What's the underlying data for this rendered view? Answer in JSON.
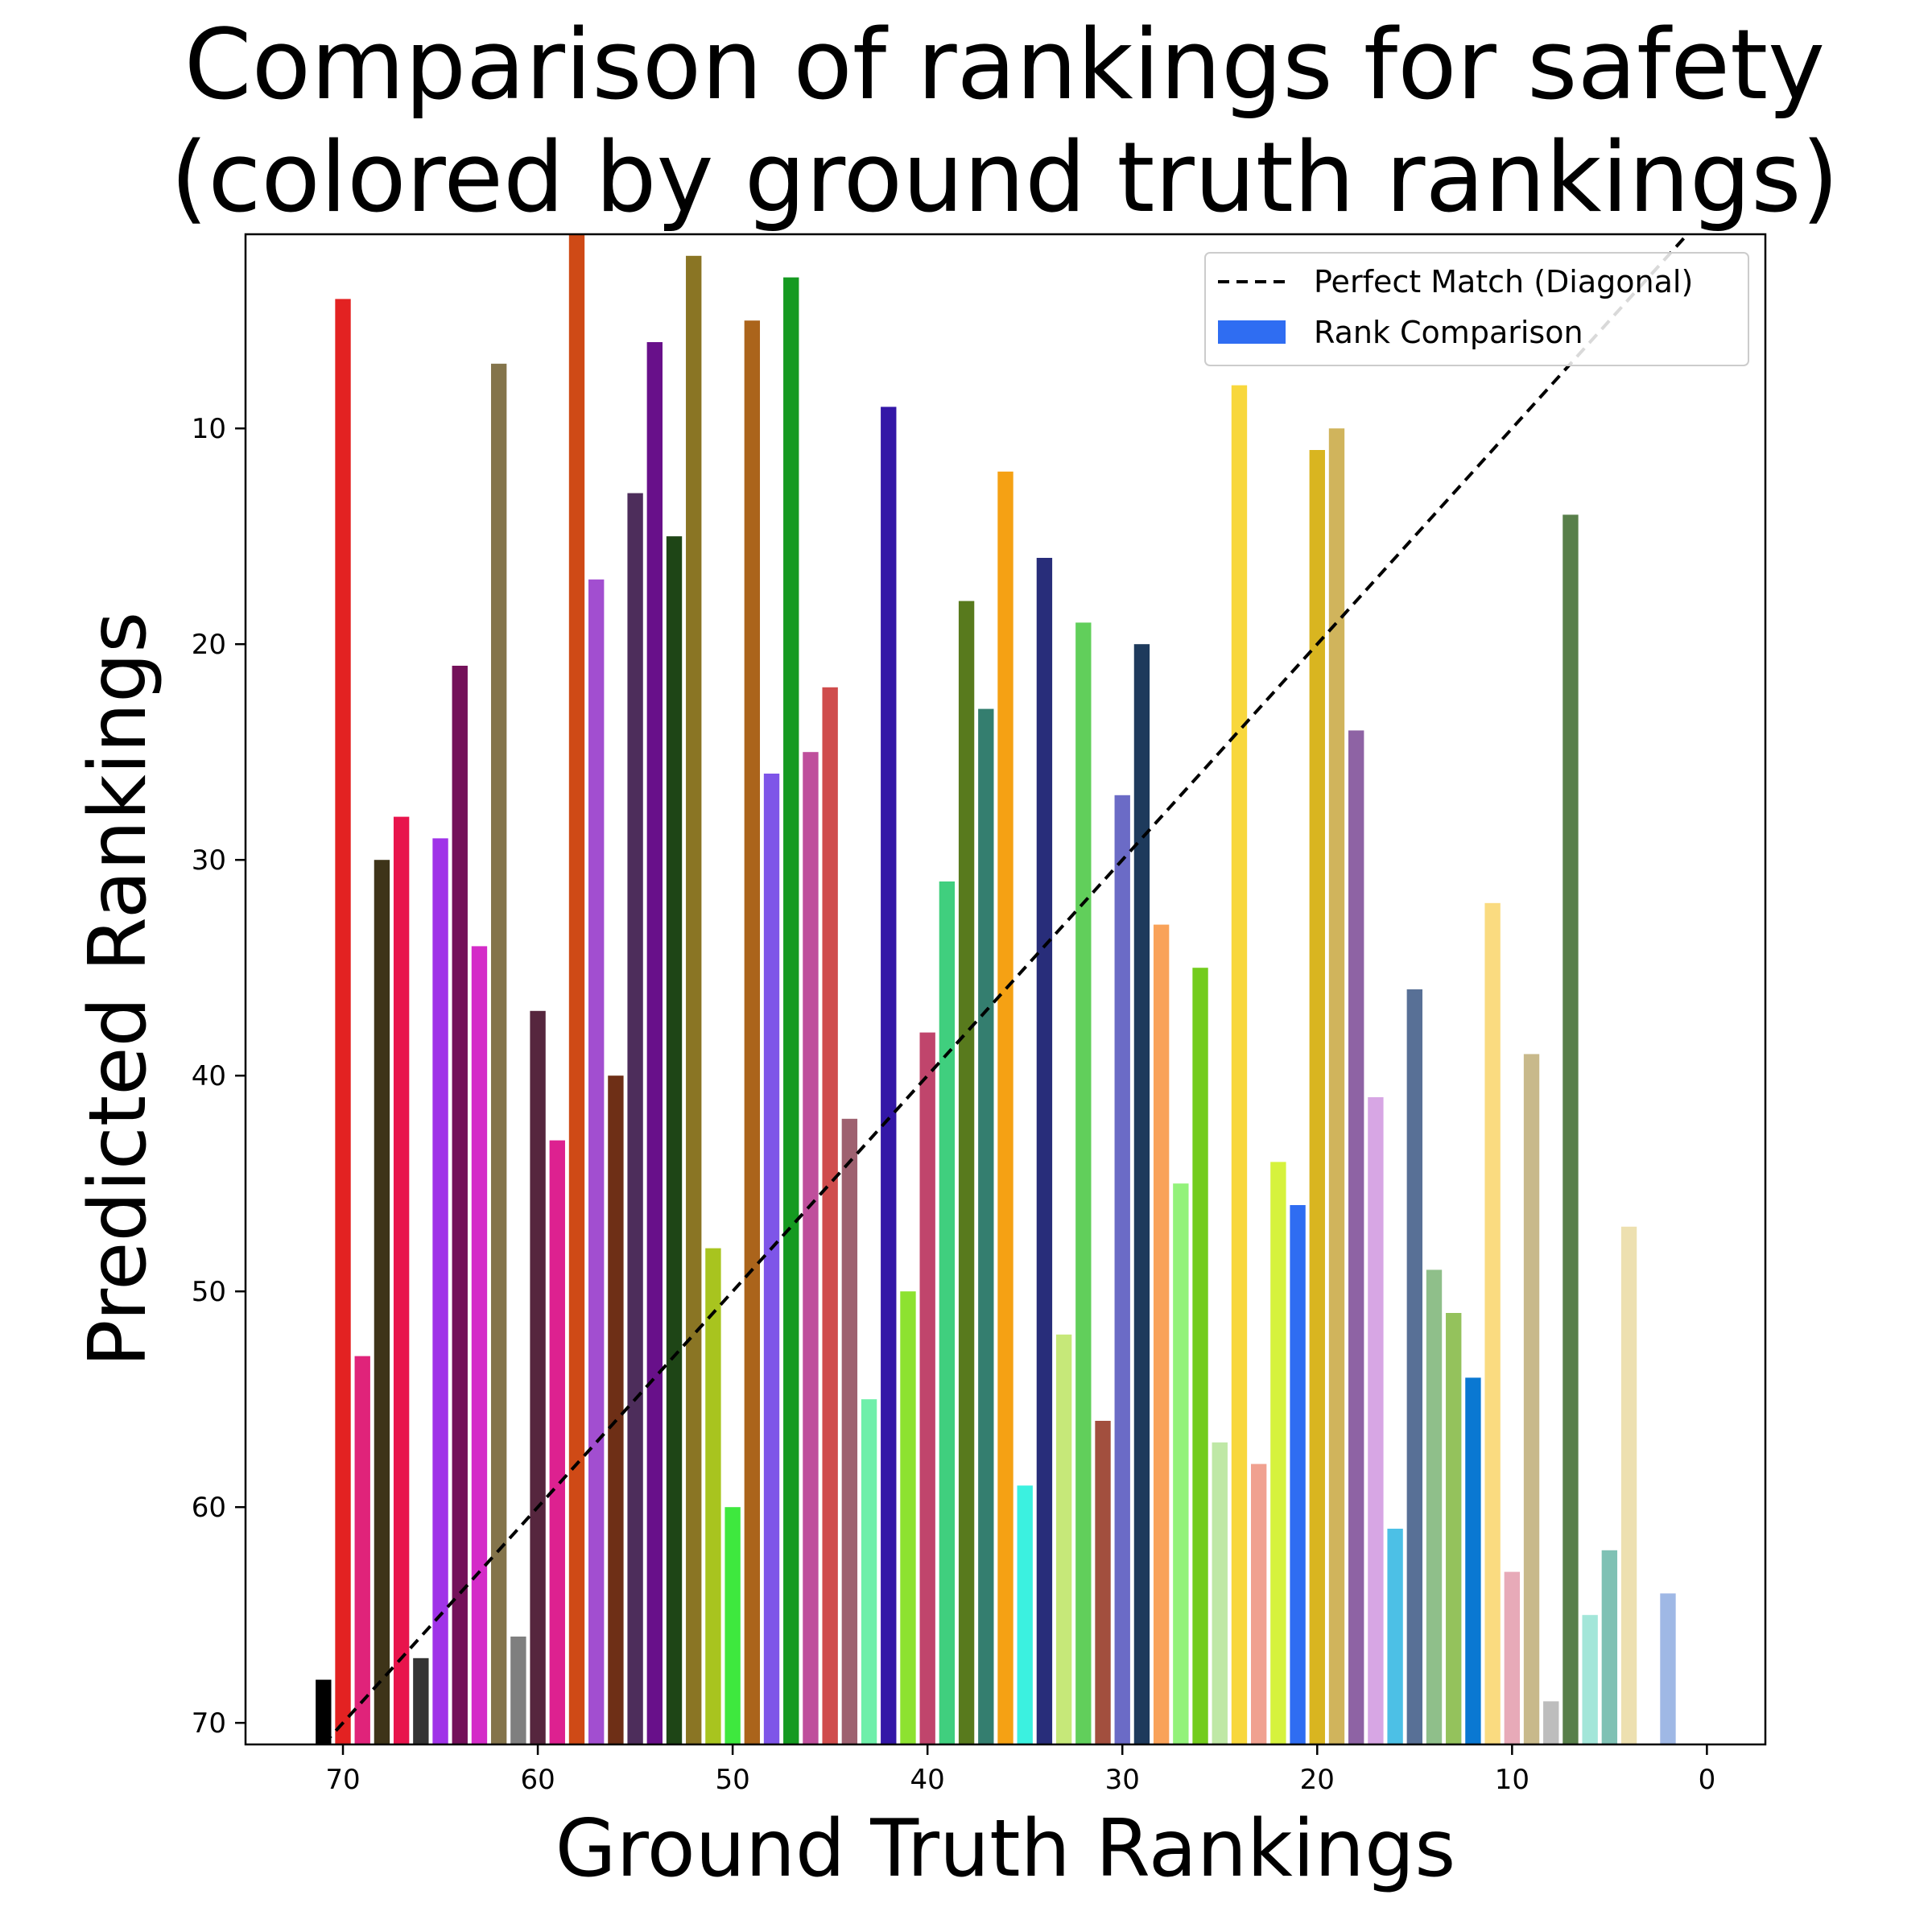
{
  "chart_data": {
    "type": "bar",
    "title_lines": [
      "Comparison of rankings for safety",
      "(colored by ground truth rankings)"
    ],
    "xlabel": "Ground Truth Rankings",
    "ylabel": "Predicted Rankings",
    "xlim": [
      75,
      -3
    ],
    "ylim": [
      71,
      1
    ],
    "y_inverted": true,
    "x_inverted": true,
    "grid": false,
    "legend_position": "top-right",
    "x_ticks": [
      70,
      60,
      50,
      40,
      30,
      20,
      10,
      0
    ],
    "x_tick_labels": [
      "70",
      "60",
      "50",
      "40",
      "30",
      "20",
      "10",
      "0"
    ],
    "y_ticks": [
      10,
      20,
      30,
      40,
      50,
      60,
      70
    ],
    "y_tick_labels": [
      "10",
      "20",
      "30",
      "40",
      "50",
      "60",
      "70"
    ],
    "legend": [
      {
        "label": "Perfect Match (Diagonal)",
        "kind": "dashed-line",
        "color": "#000000"
      },
      {
        "label": "Rank Comparison",
        "kind": "patch",
        "color": "#2f6df2"
      }
    ],
    "diagonal": {
      "from": [
        71,
        71
      ],
      "to": [
        0,
        0
      ],
      "color": "#000000",
      "style": "dashed"
    },
    "series": [
      {
        "values": [
          {
            "x": 71,
            "y": 68,
            "color": "#000000"
          },
          {
            "x": 70,
            "y": 4,
            "color": "#e32222"
          },
          {
            "x": 69,
            "y": 53,
            "color": "#e0237a"
          },
          {
            "x": 68,
            "y": 30,
            "color": "#3e3419"
          },
          {
            "x": 67,
            "y": 28,
            "color": "#e8144c"
          },
          {
            "x": 66,
            "y": 67,
            "color": "#333333"
          },
          {
            "x": 65,
            "y": 29,
            "color": "#a033e8"
          },
          {
            "x": 64,
            "y": 21,
            "color": "#74115a"
          },
          {
            "x": 63,
            "y": 34,
            "color": "#d42cc8"
          },
          {
            "x": 62,
            "y": 7,
            "color": "#84744b"
          },
          {
            "x": 61,
            "y": 66,
            "color": "#7f7f7f"
          },
          {
            "x": 60,
            "y": 37,
            "color": "#56263e"
          },
          {
            "x": 59,
            "y": 43,
            "color": "#dd2190"
          },
          {
            "x": 58,
            "y": 1,
            "color": "#cf4a16"
          },
          {
            "x": 57,
            "y": 17,
            "color": "#a24ed0"
          },
          {
            "x": 56,
            "y": 40,
            "color": "#6e2f16"
          },
          {
            "x": 55,
            "y": 13,
            "color": "#4d2d5b"
          },
          {
            "x": 54,
            "y": 6,
            "color": "#68108a"
          },
          {
            "x": 53,
            "y": 15,
            "color": "#1e4516"
          },
          {
            "x": 52,
            "y": 2,
            "color": "#8a7524"
          },
          {
            "x": 51,
            "y": 48,
            "color": "#a8c41f"
          },
          {
            "x": 50,
            "y": 60,
            "color": "#3ee83e"
          },
          {
            "x": 49,
            "y": 5,
            "color": "#ab641b"
          },
          {
            "x": 48,
            "y": 26,
            "color": "#7e55e8"
          },
          {
            "x": 47,
            "y": 3,
            "color": "#159a21"
          },
          {
            "x": 46,
            "y": 25,
            "color": "#bf4f9c"
          },
          {
            "x": 45,
            "y": 22,
            "color": "#cf4c4c"
          },
          {
            "x": 44,
            "y": 42,
            "color": "#9e6170"
          },
          {
            "x": 43,
            "y": 55,
            "color": "#6fefaa"
          },
          {
            "x": 42,
            "y": 9,
            "color": "#3317a7"
          },
          {
            "x": 41,
            "y": 50,
            "color": "#8de230"
          },
          {
            "x": 40,
            "y": 38,
            "color": "#c0456c"
          },
          {
            "x": 39,
            "y": 31,
            "color": "#40cf7e"
          },
          {
            "x": 38,
            "y": 18,
            "color": "#587a1d"
          },
          {
            "x": 37,
            "y": 23,
            "color": "#347e6f"
          },
          {
            "x": 36,
            "y": 12,
            "color": "#f5a114"
          },
          {
            "x": 35,
            "y": 59,
            "color": "#3bf1e0"
          },
          {
            "x": 34,
            "y": 16,
            "color": "#282d7a"
          },
          {
            "x": 33,
            "y": 52,
            "color": "#c6e879"
          },
          {
            "x": 32,
            "y": 19,
            "color": "#61cf5b"
          },
          {
            "x": 31,
            "y": 56,
            "color": "#a24f3e"
          },
          {
            "x": 30,
            "y": 27,
            "color": "#6b6bc6"
          },
          {
            "x": 29,
            "y": 20,
            "color": "#1e3a5c"
          },
          {
            "x": 28,
            "y": 33,
            "color": "#f9a259"
          },
          {
            "x": 27,
            "y": 45,
            "color": "#93f27a"
          },
          {
            "x": 26,
            "y": 35,
            "color": "#73cc1d"
          },
          {
            "x": 25,
            "y": 57,
            "color": "#bfe8a6"
          },
          {
            "x": 24,
            "y": 8,
            "color": "#f8d73c"
          },
          {
            "x": 23,
            "y": 58,
            "color": "#f0a190"
          },
          {
            "x": 22,
            "y": 44,
            "color": "#d6f23d"
          },
          {
            "x": 21,
            "y": 46,
            "color": "#2f6df2"
          },
          {
            "x": 20,
            "y": 11,
            "color": "#d9b520"
          },
          {
            "x": 19,
            "y": 10,
            "color": "#d0b45c"
          },
          {
            "x": 18,
            "y": 24,
            "color": "#8e63a4"
          },
          {
            "x": 17,
            "y": 41,
            "color": "#d7a6e4"
          },
          {
            "x": 16,
            "y": 61,
            "color": "#4cc0e6"
          },
          {
            "x": 15,
            "y": 36,
            "color": "#587096"
          },
          {
            "x": 14,
            "y": 49,
            "color": "#8fbf8a"
          },
          {
            "x": 13,
            "y": 51,
            "color": "#94c25c"
          },
          {
            "x": 12,
            "y": 54,
            "color": "#0a78d2"
          },
          {
            "x": 11,
            "y": 32,
            "color": "#fadb80"
          },
          {
            "x": 10,
            "y": 63,
            "color": "#e7aab8"
          },
          {
            "x": 9,
            "y": 39,
            "color": "#c8b98b"
          },
          {
            "x": 8,
            "y": 69,
            "color": "#bdbdbd"
          },
          {
            "x": 7,
            "y": 14,
            "color": "#587f4a"
          },
          {
            "x": 6,
            "y": 65,
            "color": "#a3e6d9"
          },
          {
            "x": 5,
            "y": 62,
            "color": "#7fc1b4"
          },
          {
            "x": 4,
            "y": 47,
            "color": "#ede0b0"
          },
          {
            "x": 2,
            "y": 64,
            "color": "#9fb8e5"
          }
        ]
      }
    ]
  }
}
